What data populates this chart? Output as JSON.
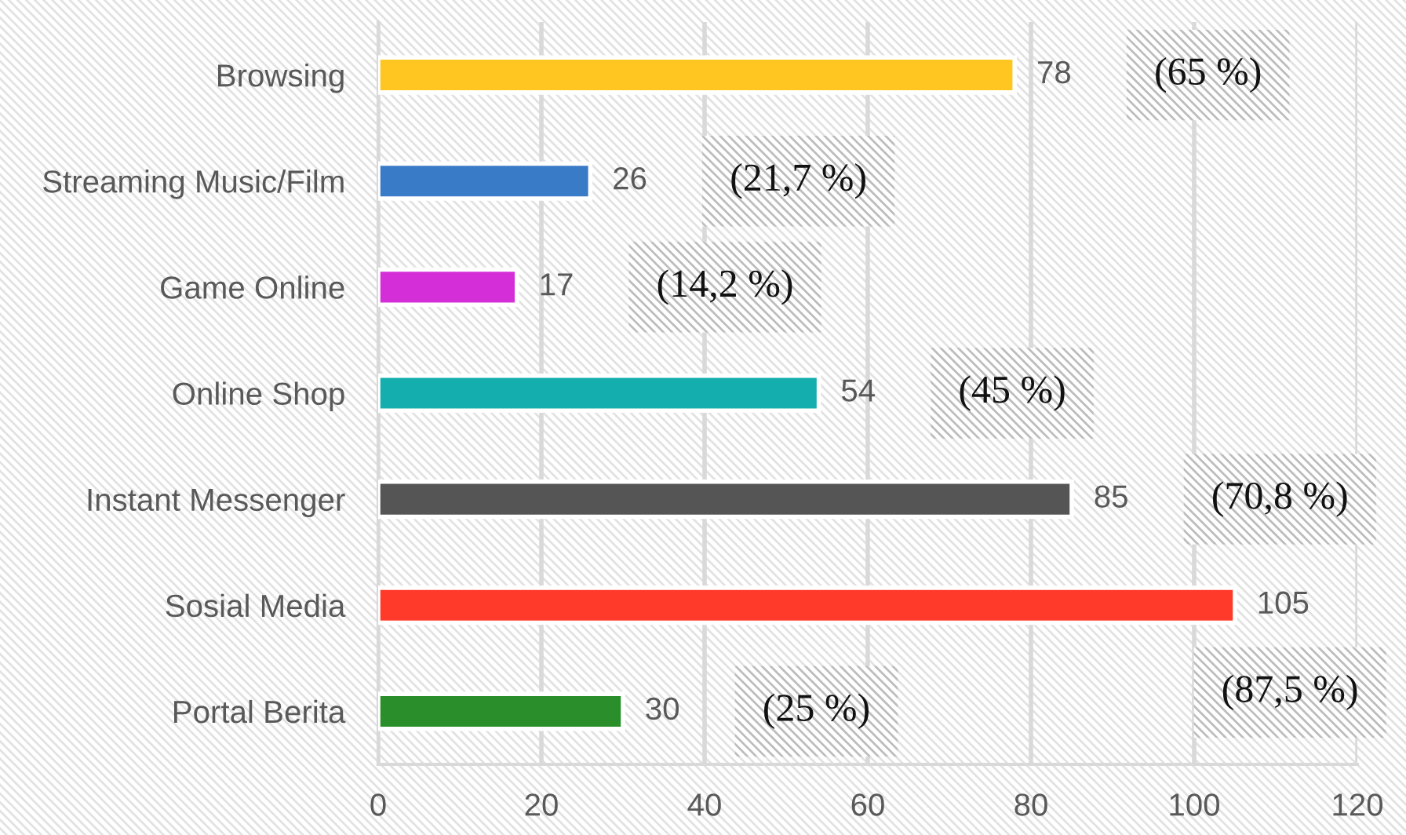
{
  "chart_data": {
    "type": "bar",
    "orientation": "horizontal",
    "categories": [
      "Browsing",
      "Streaming Music/Film",
      "Game Online",
      "Online Shop",
      "Instant Messenger",
      "Sosial Media",
      "Portal Berita"
    ],
    "values": [
      78,
      26,
      17,
      54,
      85,
      105,
      30
    ],
    "colors": [
      "#ffc520",
      "#3a7bc8",
      "#d42ed8",
      "#14aeae",
      "#555555",
      "#ff3a2a",
      "#2a8f2a"
    ],
    "xlim": [
      0,
      120
    ],
    "xticks": [
      0,
      20,
      40,
      60,
      80,
      100,
      120
    ],
    "grid": "x",
    "data_labels": true,
    "annotations": [
      "(65 %)",
      "(21,7 %)",
      "(14,2 %)",
      "(45 %)",
      "(70,8 %)",
      "(87,5 %)",
      "(25 %)"
    ]
  }
}
